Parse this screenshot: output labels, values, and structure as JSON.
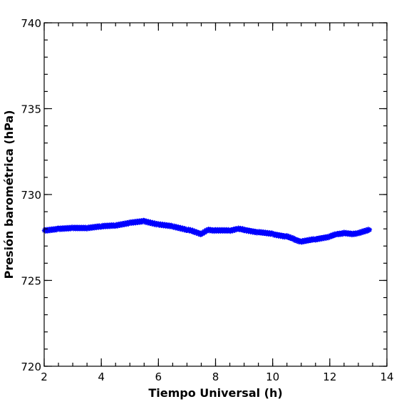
{
  "chart_data": {
    "type": "scatter",
    "xlabel": "Tiempo Universal (h)",
    "ylabel": "Presión barométrica (hPa)",
    "xlim": [
      2,
      14
    ],
    "ylim": [
      720,
      740
    ],
    "x_ticks": [
      2,
      4,
      6,
      8,
      10,
      12,
      14
    ],
    "y_ticks": [
      720,
      725,
      730,
      735,
      740
    ],
    "x_minor_step": 0.5,
    "y_minor_step": 1,
    "marker": "star",
    "color": "#0000ff",
    "grid": false,
    "series": [
      {
        "x": [
          2.0,
          2.5,
          3.0,
          3.5,
          4.0,
          4.5,
          5.0,
          5.5,
          6.0,
          6.5,
          7.0,
          7.25,
          7.5,
          7.75,
          8.0,
          8.5,
          8.75,
          9.0,
          9.5,
          10.0,
          10.5,
          10.75,
          11.0,
          11.5,
          12.0,
          12.25,
          12.5,
          12.75,
          13.0,
          13.4
        ],
        "y": [
          727.9,
          728.0,
          728.05,
          728.05,
          728.15,
          728.2,
          728.35,
          728.45,
          728.25,
          728.15,
          727.95,
          727.85,
          727.7,
          727.95,
          727.9,
          727.9,
          728.0,
          727.95,
          727.8,
          727.7,
          727.55,
          727.4,
          727.25,
          727.4,
          727.55,
          727.7,
          727.75,
          727.7,
          727.75,
          727.95
        ]
      }
    ]
  }
}
